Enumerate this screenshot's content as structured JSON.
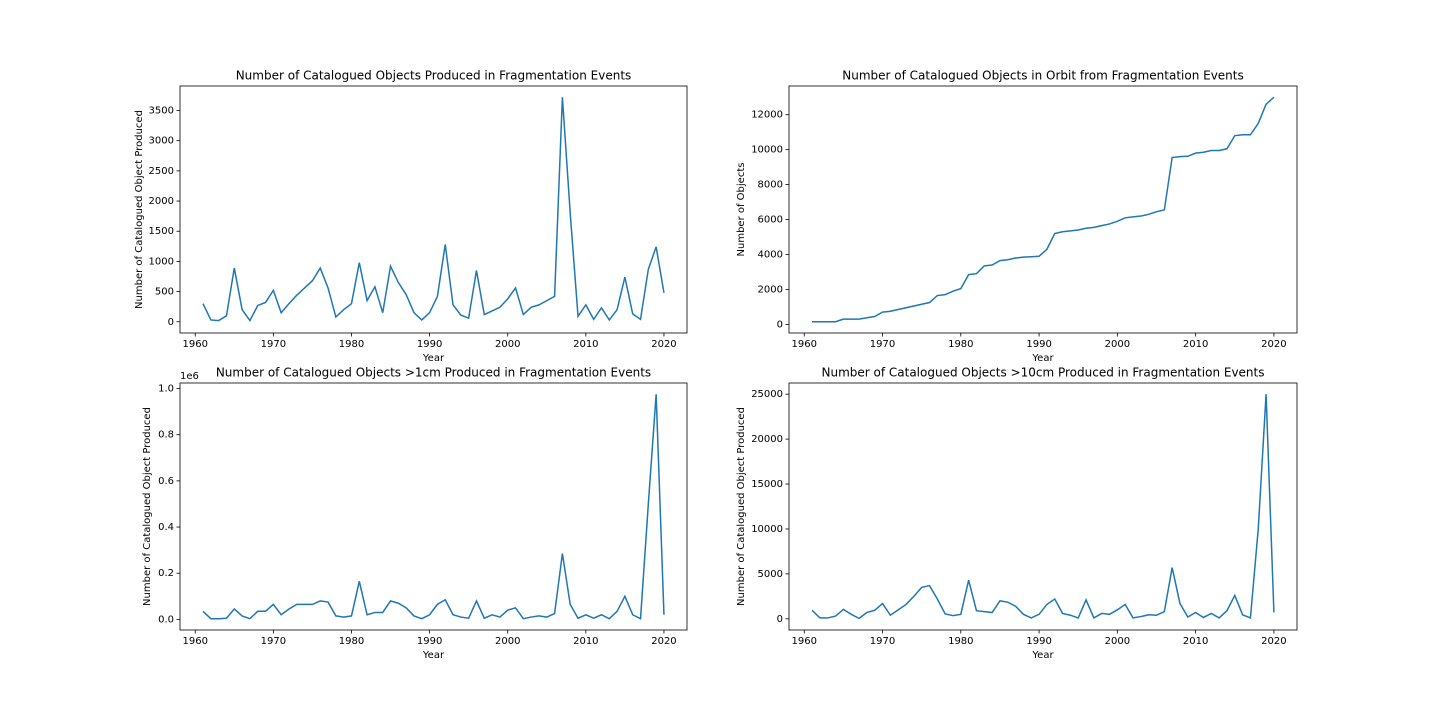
{
  "chart_data": [
    {
      "type": "line",
      "title": "Number of Catalogued Objects Produced in Fragmentation Events",
      "xlabel": "Year",
      "ylabel": "Number of Catalogued Object Produced",
      "color": "#1f77b4",
      "x": [
        1961,
        1962,
        1963,
        1964,
        1965,
        1966,
        1967,
        1968,
        1969,
        1970,
        1971,
        1972,
        1973,
        1974,
        1975,
        1976,
        1977,
        1978,
        1979,
        1980,
        1981,
        1982,
        1983,
        1984,
        1985,
        1986,
        1987,
        1988,
        1989,
        1990,
        1991,
        1992,
        1993,
        1994,
        1995,
        1996,
        1997,
        1998,
        1999,
        2000,
        2001,
        2002,
        2003,
        2004,
        2005,
        2006,
        2007,
        2008,
        2009,
        2010,
        2011,
        2012,
        2013,
        2014,
        2015,
        2016,
        2017,
        2018,
        2019,
        2020
      ],
      "values": [
        300,
        30,
        20,
        100,
        890,
        200,
        20,
        270,
        320,
        520,
        150,
        300,
        440,
        560,
        680,
        890,
        560,
        80,
        200,
        300,
        980,
        350,
        580,
        150,
        920,
        650,
        450,
        150,
        30,
        150,
        420,
        1280,
        280,
        110,
        60,
        850,
        120,
        180,
        240,
        380,
        560,
        120,
        240,
        280,
        350,
        420,
        3720,
        1800,
        90,
        280,
        40,
        230,
        30,
        200,
        740,
        130,
        40,
        870,
        1240,
        480
      ],
      "xlim": [
        1958.05,
        2022.95
      ],
      "xticks": [
        1960,
        1970,
        1980,
        1990,
        2000,
        2010,
        2020
      ],
      "ylim": [
        -186,
        3906
      ],
      "yticks": [
        0,
        500,
        1000,
        1500,
        2000,
        2500,
        3000,
        3500
      ]
    },
    {
      "type": "line",
      "title": "Number of Catalogued Objects in Orbit from Fragmentation Events",
      "xlabel": "Year",
      "ylabel": "Number of Objects",
      "color": "#1f77b4",
      "x": [
        1961,
        1962,
        1963,
        1964,
        1965,
        1966,
        1967,
        1968,
        1969,
        1970,
        1971,
        1972,
        1973,
        1974,
        1975,
        1976,
        1977,
        1978,
        1979,
        1980,
        1981,
        1982,
        1983,
        1984,
        1985,
        1986,
        1987,
        1988,
        1989,
        1990,
        1991,
        1992,
        1993,
        1994,
        1995,
        1996,
        1997,
        1998,
        1999,
        2000,
        2001,
        2002,
        2003,
        2004,
        2005,
        2006,
        2007,
        2008,
        2009,
        2010,
        2011,
        2012,
        2013,
        2014,
        2015,
        2016,
        2017,
        2018,
        2019,
        2020
      ],
      "values": [
        150,
        150,
        150,
        150,
        300,
        300,
        300,
        380,
        450,
        700,
        750,
        850,
        950,
        1050,
        1150,
        1250,
        1650,
        1700,
        1900,
        2050,
        2850,
        2900,
        3350,
        3400,
        3650,
        3700,
        3800,
        3850,
        3870,
        3900,
        4300,
        5200,
        5300,
        5350,
        5400,
        5500,
        5550,
        5650,
        5750,
        5900,
        6100,
        6150,
        6200,
        6300,
        6450,
        6550,
        9550,
        9600,
        9620,
        9800,
        9850,
        9950,
        9950,
        10050,
        10800,
        10850,
        10850,
        11500,
        12600,
        13000
      ],
      "xlim": [
        1958.05,
        2022.95
      ],
      "xticks": [
        1960,
        1970,
        1980,
        1990,
        2000,
        2010,
        2020
      ],
      "ylim": [
        -493,
        13643
      ],
      "yticks": [
        0,
        2000,
        4000,
        6000,
        8000,
        10000,
        12000
      ]
    },
    {
      "type": "line",
      "title": "Number of Catalogued Objects >1cm Produced in Fragmentation Events",
      "xlabel": "Year",
      "ylabel": "Number of Catalogued Object Produced",
      "y_offset_label": "1e6",
      "color": "#1f77b4",
      "x": [
        1961,
        1962,
        1963,
        1964,
        1965,
        1966,
        1967,
        1968,
        1969,
        1970,
        1971,
        1972,
        1973,
        1974,
        1975,
        1976,
        1977,
        1978,
        1979,
        1980,
        1981,
        1982,
        1983,
        1984,
        1985,
        1986,
        1987,
        1988,
        1989,
        1990,
        1991,
        1992,
        1993,
        1994,
        1995,
        1996,
        1997,
        1998,
        1999,
        2000,
        2001,
        2002,
        2003,
        2004,
        2005,
        2006,
        2007,
        2008,
        2009,
        2010,
        2011,
        2012,
        2013,
        2014,
        2015,
        2016,
        2017,
        2018,
        2019,
        2020
      ],
      "values": [
        0.035,
        0.003,
        0.003,
        0.005,
        0.045,
        0.015,
        0.003,
        0.035,
        0.035,
        0.065,
        0.02,
        0.045,
        0.065,
        0.065,
        0.065,
        0.08,
        0.075,
        0.015,
        0.01,
        0.015,
        0.165,
        0.02,
        0.03,
        0.03,
        0.08,
        0.07,
        0.05,
        0.015,
        0.003,
        0.02,
        0.065,
        0.085,
        0.02,
        0.01,
        0.005,
        0.08,
        0.005,
        0.02,
        0.01,
        0.04,
        0.05,
        0.003,
        0.01,
        0.015,
        0.01,
        0.025,
        0.285,
        0.065,
        0.005,
        0.02,
        0.005,
        0.02,
        0.003,
        0.035,
        0.1,
        0.02,
        0.003,
        0.5,
        0.975,
        0.02
      ],
      "xlim": [
        1958.05,
        2022.95
      ],
      "xticks": [
        1960,
        1970,
        1980,
        1990,
        2000,
        2010,
        2020
      ],
      "ylim": [
        -0.046,
        1.024
      ],
      "yticks": [
        {
          "value": 0,
          "label": "0.0"
        },
        0.2,
        0.4,
        0.6,
        0.8,
        {
          "value": 1,
          "label": "1.0"
        }
      ]
    },
    {
      "type": "line",
      "title": "Number of Catalogued Objects >10cm Produced in Fragmentation Events",
      "xlabel": "Year",
      "ylabel": "Number of Catalogued Object Produced",
      "color": "#1f77b4",
      "x": [
        1961,
        1962,
        1963,
        1964,
        1965,
        1966,
        1967,
        1968,
        1969,
        1970,
        1971,
        1972,
        1973,
        1974,
        1975,
        1976,
        1977,
        1978,
        1979,
        1980,
        1981,
        1982,
        1983,
        1984,
        1985,
        1986,
        1987,
        1988,
        1989,
        1990,
        1991,
        1992,
        1993,
        1994,
        1995,
        1996,
        1997,
        1998,
        1999,
        2000,
        2001,
        2002,
        2003,
        2004,
        2005,
        2006,
        2007,
        2008,
        2009,
        2010,
        2011,
        2012,
        2013,
        2014,
        2015,
        2016,
        2017,
        2018,
        2019,
        2020
      ],
      "values": [
        950,
        100,
        100,
        300,
        1050,
        500,
        50,
        700,
        950,
        1700,
        400,
        1000,
        1600,
        2500,
        3500,
        3700,
        2200,
        550,
        350,
        500,
        4300,
        900,
        800,
        700,
        2000,
        1850,
        1400,
        500,
        100,
        500,
        1600,
        2200,
        600,
        400,
        100,
        2100,
        100,
        600,
        500,
        1000,
        1600,
        100,
        250,
        450,
        400,
        800,
        5700,
        1700,
        200,
        700,
        150,
        600,
        100,
        900,
        2600,
        450,
        100,
        10000,
        25000,
        700
      ],
      "xlim": [
        1958.05,
        2022.95
      ],
      "xticks": [
        1960,
        1970,
        1980,
        1990,
        2000,
        2010,
        2020
      ],
      "ylim": [
        -1245,
        26245
      ],
      "yticks": [
        0,
        5000,
        10000,
        15000,
        20000,
        25000
      ]
    }
  ]
}
